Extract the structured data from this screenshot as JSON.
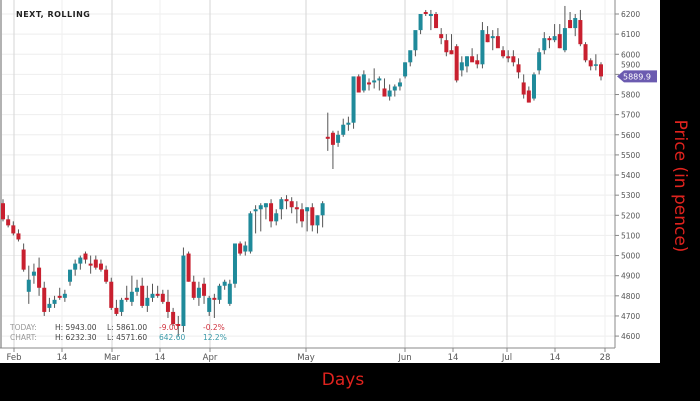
{
  "chart_data": {
    "type": "candlestick",
    "title": "NEXT, ROLLING",
    "xlabel": "Days",
    "ylabel": "Price (in pence)",
    "ylim": [
      4560,
      6260
    ],
    "y_ticks": [
      4600,
      4700,
      4800,
      4900,
      5000,
      5100,
      5200,
      5300,
      5400,
      5500,
      5600,
      5700,
      5800,
      5900,
      6000,
      6100,
      6200
    ],
    "x_ticks": [
      "Feb",
      "14",
      "Mar",
      "14",
      "Apr",
      "May",
      "Jun",
      "14",
      "Jul",
      "14",
      "28"
    ],
    "grid": true,
    "colors": {
      "up": "#1f8a9a",
      "down": "#c8202f",
      "wick": "#555555",
      "last_price_tag": "#6b5bb0"
    },
    "last_price": "5889.9",
    "candles_ohlc": [
      [
        5260,
        5280,
        5170,
        5180
      ],
      [
        5180,
        5200,
        5140,
        5150
      ],
      [
        5150,
        5170,
        5100,
        5110
      ],
      [
        5110,
        5130,
        5070,
        5080
      ],
      [
        5030,
        5060,
        4920,
        4930
      ],
      [
        4820,
        4950,
        4760,
        4880
      ],
      [
        4900,
        4960,
        4860,
        4920
      ],
      [
        4940,
        4990,
        4800,
        4840
      ],
      [
        4840,
        4870,
        4700,
        4720
      ],
      [
        4740,
        4790,
        4720,
        4760
      ],
      [
        4760,
        4800,
        4740,
        4780
      ],
      [
        4800,
        4840,
        4780,
        4790
      ],
      [
        4790,
        4830,
        4770,
        4810
      ],
      [
        4870,
        4900,
        4850,
        4930
      ],
      [
        4930,
        4980,
        4900,
        4960
      ],
      [
        4960,
        5000,
        4930,
        4990
      ],
      [
        5010,
        5020,
        4960,
        4980
      ],
      [
        4960,
        5000,
        4910,
        4950
      ],
      [
        4980,
        5000,
        4930,
        4940
      ],
      [
        4960,
        4980,
        4920,
        4930
      ],
      [
        4930,
        4950,
        4860,
        4870
      ],
      [
        4870,
        4890,
        4730,
        4740
      ],
      [
        4740,
        4780,
        4700,
        4710
      ],
      [
        4720,
        4790,
        4700,
        4780
      ],
      [
        4790,
        4850,
        4770,
        4780
      ],
      [
        4770,
        4900,
        4750,
        4820
      ],
      [
        4820,
        4880,
        4800,
        4840
      ],
      [
        4850,
        4890,
        4740,
        4750
      ],
      [
        4750,
        4850,
        4720,
        4790
      ],
      [
        4790,
        4860,
        4770,
        4810
      ],
      [
        4810,
        4850,
        4790,
        4800
      ],
      [
        4810,
        4830,
        4760,
        4770
      ],
      [
        4770,
        4830,
        4690,
        4720
      ],
      [
        4720,
        4740,
        4650,
        4660
      ],
      [
        4660,
        4700,
        4600,
        4650
      ],
      [
        4650,
        5040,
        4620,
        5000
      ],
      [
        5010,
        5020,
        4870,
        4870
      ],
      [
        4870,
        4900,
        4780,
        4790
      ],
      [
        4790,
        4870,
        4750,
        4840
      ],
      [
        4860,
        4890,
        4760,
        4800
      ],
      [
        4720,
        4800,
        4700,
        4790
      ],
      [
        4790,
        4810,
        4690,
        4780
      ],
      [
        4780,
        4860,
        4760,
        4850
      ],
      [
        4850,
        4880,
        4830,
        4870
      ],
      [
        4760,
        4880,
        4750,
        4860
      ],
      [
        4860,
        5060,
        4840,
        5060
      ],
      [
        5060,
        5070,
        5000,
        5010
      ],
      [
        5020,
        5070,
        5000,
        5050
      ],
      [
        5020,
        5220,
        5010,
        5210
      ],
      [
        5220,
        5250,
        5110,
        5230
      ],
      [
        5230,
        5260,
        5120,
        5250
      ],
      [
        5240,
        5260,
        5180,
        5260
      ],
      [
        5260,
        5280,
        5140,
        5170
      ],
      [
        5170,
        5230,
        5150,
        5210
      ],
      [
        5230,
        5290,
        5180,
        5280
      ],
      [
        5280,
        5300,
        5230,
        5270
      ],
      [
        5270,
        5290,
        5210,
        5240
      ],
      [
        5240,
        5270,
        5160,
        5230
      ],
      [
        5230,
        5260,
        5140,
        5170
      ],
      [
        5220,
        5240,
        5120,
        5240
      ],
      [
        5240,
        5260,
        5120,
        5150
      ],
      [
        5150,
        5200,
        5110,
        5200
      ],
      [
        5200,
        5270,
        5140,
        5260
      ],
      [
        5590,
        5710,
        5520,
        5580
      ],
      [
        5610,
        5620,
        5430,
        5550
      ],
      [
        5560,
        5620,
        5540,
        5600
      ],
      [
        5600,
        5680,
        5590,
        5650
      ],
      [
        5650,
        5690,
        5620,
        5660
      ],
      [
        5660,
        5880,
        5630,
        5890
      ],
      [
        5890,
        5900,
        5810,
        5810
      ],
      [
        5820,
        5920,
        5810,
        5900
      ],
      [
        5860,
        5880,
        5820,
        5850
      ],
      [
        5860,
        5930,
        5830,
        5870
      ],
      [
        5870,
        5890,
        5820,
        5880
      ],
      [
        5830,
        5880,
        5800,
        5790
      ],
      [
        5790,
        5850,
        5770,
        5820
      ],
      [
        5820,
        5850,
        5790,
        5840
      ],
      [
        5840,
        5880,
        5820,
        5860
      ],
      [
        5890,
        5960,
        5880,
        5960
      ],
      [
        5960,
        6000,
        5940,
        6020
      ],
      [
        6020,
        6070,
        5990,
        6120
      ],
      [
        6120,
        6180,
        6100,
        6200
      ],
      [
        6210,
        6220,
        6190,
        6200
      ],
      [
        6190,
        6220,
        6120,
        6200
      ],
      [
        6200,
        6210,
        6150,
        6130
      ],
      [
        6100,
        6130,
        6050,
        6080
      ],
      [
        6070,
        6100,
        5990,
        6010
      ],
      [
        6020,
        6100,
        6000,
        6000
      ],
      [
        6040,
        6050,
        5860,
        5870
      ],
      [
        5920,
        5990,
        5890,
        5960
      ],
      [
        5940,
        5990,
        5910,
        5990
      ],
      [
        5990,
        6030,
        5980,
        5960
      ],
      [
        5970,
        6000,
        5930,
        5950
      ],
      [
        5950,
        6160,
        5930,
        6120
      ],
      [
        6100,
        6140,
        6060,
        6060
      ],
      [
        6080,
        6120,
        6020,
        6090
      ],
      [
        6090,
        6130,
        6060,
        6030
      ],
      [
        6020,
        6040,
        5980,
        5990
      ],
      [
        5990,
        6020,
        5960,
        5980
      ],
      [
        5990,
        6020,
        5940,
        5960
      ],
      [
        5950,
        5980,
        5880,
        5910
      ],
      [
        5860,
        5900,
        5780,
        5800
      ],
      [
        5820,
        5840,
        5760,
        5760
      ],
      [
        5780,
        5910,
        5770,
        5900
      ],
      [
        5920,
        6030,
        5900,
        6010
      ],
      [
        6020,
        6110,
        6000,
        6080
      ],
      [
        6080,
        6090,
        6030,
        6070
      ],
      [
        6070,
        6150,
        6060,
        6090
      ],
      [
        6100,
        6150,
        6030,
        6030
      ],
      [
        6020,
        6240,
        6010,
        6130
      ],
      [
        6170,
        6210,
        6130,
        6130
      ],
      [
        6130,
        6200,
        6090,
        6180
      ],
      [
        6170,
        6220,
        6040,
        6050
      ],
      [
        6050,
        6060,
        5960,
        5970
      ],
      [
        5970,
        5980,
        5920,
        5940
      ],
      [
        5950,
        6000,
        5920,
        5950
      ],
      [
        5950,
        5960,
        5870,
        5890
      ]
    ]
  },
  "stats": {
    "today_label": "TODAY:",
    "today_high": "H: 5943.00",
    "today_low": "L: 5861.00",
    "today_change": "-9.00",
    "today_change_pct": "-0.2%",
    "chart_label": "CHART:",
    "chart_high": "H: 6232.30",
    "chart_low": "L: 4571.60",
    "chart_change": "642.60",
    "chart_change_pct": "12.2%"
  }
}
